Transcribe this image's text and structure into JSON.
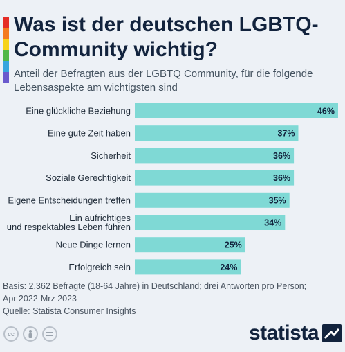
{
  "title": "Was ist der deutschen LGBTQ-Community wichtig?",
  "subtitle": "Anteil der Befragten aus der LGBTQ Community, für die folgende Lebensaspekte am wichtigsten sind",
  "colors": {
    "bar": "#7fd9d5",
    "rainbow": [
      "#e52d27",
      "#f47b20",
      "#f6d31a",
      "#51b848",
      "#37a6de",
      "#6a5acd"
    ],
    "brand": "#12233d"
  },
  "chart_data": {
    "type": "bar",
    "orientation": "horizontal",
    "categories": [
      "Eine glückliche Beziehung",
      "Eine gute Zeit haben",
      "Sicherheit",
      "Soziale Gerechtigkeit",
      "Eigene Entscheidungen treffen",
      "Ein aufrichtiges und respektables Leben führen",
      "Neue Dinge lernen",
      "Erfolgreich sein"
    ],
    "values": [
      46,
      37,
      36,
      36,
      35,
      34,
      25,
      24
    ],
    "value_labels": [
      "46%",
      "37%",
      "36%",
      "36%",
      "35%",
      "34%",
      "25%",
      "24%"
    ],
    "unit": "%",
    "xlim": [
      0,
      46
    ],
    "grid": false,
    "legend": "none"
  },
  "footer": {
    "basis_line1": "Basis: 2.362 Befragte (18-64 Jahre) in Deutschland; drei Antworten pro Person;",
    "basis_line2": "Apr 2022-Mrz 2023",
    "source": "Quelle: Statista Consumer Insights"
  },
  "license_icons": [
    "cc-icon",
    "attribution-icon",
    "no-derivatives-icon"
  ],
  "brand": "statista"
}
